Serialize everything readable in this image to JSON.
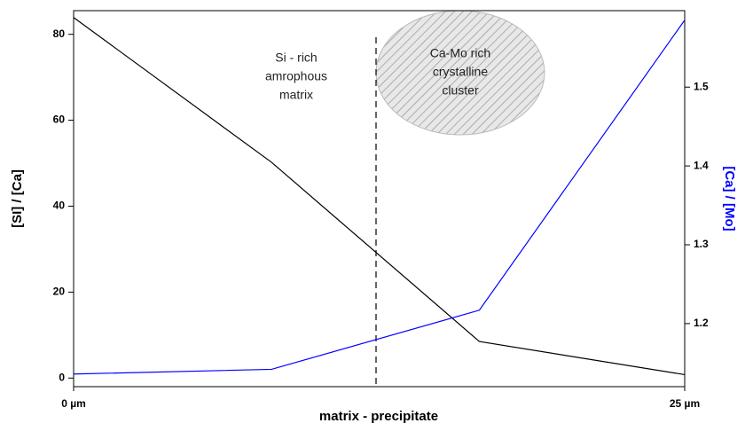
{
  "chart_data": {
    "type": "line",
    "xlabel": "matrix - precipitate",
    "ylabel": "[SI] / [Ca]",
    "y2label": "[Ca] / [Mo]",
    "x": [
      0,
      8.1,
      16.6,
      25
    ],
    "xlim": [
      0,
      25
    ],
    "xticks": [
      {
        "value": 0,
        "label": "0 µm"
      },
      {
        "value": 25,
        "label": "25 µm"
      }
    ],
    "ylim": [
      -2,
      85.5
    ],
    "yticks": [
      0,
      20,
      40,
      60,
      80
    ],
    "y2lim": [
      1.12,
      1.597
    ],
    "y2ticks": [
      1.2,
      1.3,
      1.4,
      1.5
    ],
    "series": [
      {
        "color": "#000000",
        "values": [
          83.9,
          50.2,
          8.5,
          0.8
        ]
      },
      {
        "color": "#0000ff",
        "axis": "y2",
        "values": [
          1.136,
          1.142,
          1.217,
          1.585
        ]
      }
    ],
    "annotations": [
      {
        "lines": [
          "Si - rich",
          "amrophous",
          "matrix"
        ]
      },
      {
        "lines": [
          "Ca-Mo rich",
          "crystalline",
          "cluster"
        ]
      }
    ]
  }
}
